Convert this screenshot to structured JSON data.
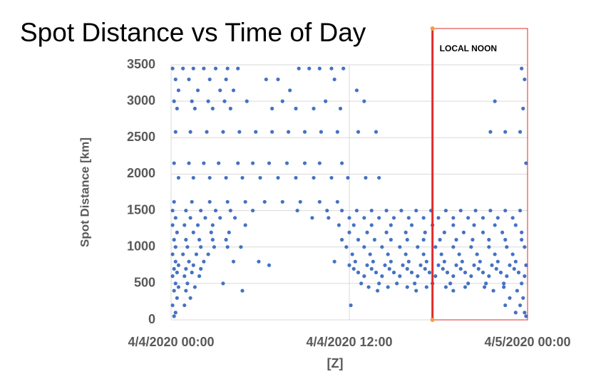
{
  "chart_data": {
    "type": "scatter",
    "title": "Spot Distance vs Time of Day",
    "xlabel": "[Z]",
    "ylabel": "Spot Distance [km]",
    "xlim": [
      0,
      24
    ],
    "xticks": [
      {
        "value": 0,
        "label": "4/4/2020 00:00"
      },
      {
        "value": 12,
        "label": "4/4/2020 12:00"
      },
      {
        "value": 24,
        "label": "4/5/2020 00:00"
      }
    ],
    "ylim": [
      0,
      3500
    ],
    "yticks": [
      0,
      500,
      1000,
      1500,
      2000,
      2500,
      3000,
      3500
    ],
    "grid": true,
    "color": "#4472c4",
    "annotation": {
      "text": "LOCAL NOON",
      "x": 17.6,
      "color": "#e02b2b"
    },
    "x": [
      0.1,
      0.8,
      1.5,
      2.2,
      3.0,
      3.8,
      4.5,
      8.6,
      9.3,
      10.0,
      10.8,
      11.6,
      23.6,
      0.3,
      1.2,
      2.6,
      3.7,
      6.4,
      7.2,
      11.0,
      23.8,
      0.5,
      1.8,
      3.3,
      4.2,
      8.0,
      12.5,
      0.2,
      1.4,
      2.5,
      3.6,
      5.1,
      7.5,
      10.4,
      13.0,
      21.8,
      0.4,
      1.6,
      2.8,
      4.0,
      6.8,
      8.4,
      9.6,
      11.4,
      23.7,
      0.3,
      1.3,
      2.4,
      3.5,
      4.6,
      5.7,
      6.8,
      7.9,
      9.0,
      10.1,
      11.2,
      12.6,
      13.8,
      21.5,
      22.5,
      23.5,
      0.2,
      1.2,
      2.2,
      3.2,
      4.5,
      5.5,
      6.6,
      7.8,
      9.0,
      10.0,
      11.5,
      23.9,
      0.5,
      1.5,
      2.6,
      3.7,
      4.8,
      6.0,
      7.2,
      8.4,
      9.6,
      10.8,
      11.9,
      13.1,
      14.0,
      0.2,
      1.4,
      2.6,
      3.8,
      5.0,
      6.3,
      7.5,
      8.7,
      10.0,
      11.2,
      0.1,
      1.0,
      2.0,
      3.0,
      4.0,
      5.5,
      8.5,
      10.5,
      11.5,
      12.5,
      13.5,
      14.5,
      15.5,
      16.5,
      17.5,
      18.5,
      19.5,
      20.5,
      21.5,
      22.5,
      23.5,
      0.3,
      1.3,
      2.3,
      3.3,
      4.3,
      9.5,
      10.6,
      12.0,
      13.0,
      14.0,
      15.0,
      16.0,
      17.0,
      18.0,
      19.0,
      20.0,
      21.0,
      22.0,
      23.0,
      0.1,
      0.9,
      1.8,
      2.8,
      5.0,
      11.3,
      12.3,
      13.5,
      14.8,
      16.2,
      17.6,
      19.0,
      20.4,
      21.8,
      23.2,
      0.4,
      1.5,
      2.7,
      3.9,
      12.0,
      13.2,
      14.5,
      15.8,
      17.1,
      18.4,
      19.7,
      21.0,
      22.3,
      23.6,
      0.2,
      1.0,
      1.9,
      2.8,
      3.7,
      11.5,
      12.6,
      13.7,
      14.8,
      15.9,
      17.0,
      18.1,
      19.2,
      20.3,
      21.4,
      22.5,
      23.6,
      0.3,
      1.1,
      2.0,
      2.9,
      3.8,
      4.7,
      11.8,
      13.0,
      14.2,
      15.4,
      16.6,
      17.8,
      19.0,
      20.2,
      21.4,
      22.6,
      23.8,
      0.1,
      0.8,
      1.7,
      2.5,
      12.2,
      13.4,
      14.6,
      15.8,
      17.0,
      18.2,
      19.4,
      20.6,
      21.8,
      23.0,
      0.3,
      1.2,
      2.2,
      4.2,
      5.9,
      11.0,
      12.4,
      13.6,
      14.8,
      16.0,
      17.2,
      18.4,
      19.6,
      20.8,
      22.0,
      23.2,
      0.5,
      1.5,
      6.6,
      12.0,
      13.2,
      14.4,
      15.6,
      16.8,
      18.0,
      19.2,
      20.4,
      21.6,
      22.8,
      23.9,
      0.2,
      1.0,
      2.0,
      12.3,
      13.5,
      14.7,
      15.9,
      17.1,
      18.3,
      19.5,
      20.7,
      21.9,
      23.1,
      0.4,
      1.4,
      12.6,
      13.8,
      15.0,
      16.2,
      17.4,
      18.6,
      19.8,
      21.0,
      22.2,
      23.4,
      0.1,
      0.9,
      1.9,
      13.0,
      14.2,
      15.4,
      16.6,
      17.8,
      19.0,
      20.2,
      21.4,
      22.6,
      23.8,
      0.3,
      1.1,
      3.5,
      12.8,
      14.0,
      15.2,
      16.4,
      17.6,
      18.8,
      20.0,
      21.2,
      22.4,
      23.6,
      0.5,
      1.6,
      13.3,
      14.6,
      15.9,
      17.2,
      18.5,
      19.8,
      21.1,
      22.4,
      0.2,
      1.0,
      4.8,
      13.9,
      16.5,
      19.0,
      21.7,
      23.3,
      0.4,
      1.3,
      22.8,
      23.7,
      0.1,
      0.9,
      12.1,
      22.5,
      23.5,
      0.3,
      23.2,
      23.8,
      0.2,
      23.9
    ],
    "values": [
      3450,
      3450,
      3450,
      3450,
      3450,
      3450,
      3450,
      3450,
      3450,
      3450,
      3450,
      3450,
      3450,
      3300,
      3300,
      3300,
      3300,
      3300,
      3300,
      3300,
      3300,
      3150,
      3150,
      3150,
      3150,
      3150,
      3150,
      3000,
      3000,
      3000,
      3000,
      3000,
      3000,
      3000,
      3000,
      3000,
      2900,
      2900,
      2900,
      2900,
      2900,
      2900,
      2900,
      2900,
      2900,
      2580,
      2580,
      2580,
      2580,
      2580,
      2580,
      2580,
      2580,
      2580,
      2580,
      2580,
      2580,
      2580,
      2580,
      2580,
      2580,
      2150,
      2150,
      2150,
      2150,
      2150,
      2150,
      2150,
      2150,
      2150,
      2150,
      2150,
      2150,
      1950,
      1950,
      1950,
      1950,
      1950,
      1950,
      1950,
      1950,
      1950,
      1950,
      1950,
      1950,
      1950,
      1620,
      1620,
      1620,
      1620,
      1620,
      1620,
      1620,
      1620,
      1620,
      1620,
      1500,
      1500,
      1500,
      1500,
      1500,
      1500,
      1500,
      1500,
      1500,
      1500,
      1500,
      1500,
      1500,
      1500,
      1500,
      1500,
      1500,
      1500,
      1500,
      1500,
      1500,
      1400,
      1400,
      1400,
      1400,
      1400,
      1400,
      1400,
      1400,
      1400,
      1400,
      1400,
      1400,
      1400,
      1400,
      1400,
      1400,
      1400,
      1400,
      1400,
      1300,
      1300,
      1300,
      1300,
      1300,
      1300,
      1300,
      1300,
      1300,
      1300,
      1300,
      1300,
      1300,
      1300,
      1300,
      1200,
      1200,
      1200,
      1200,
      1200,
      1200,
      1200,
      1200,
      1200,
      1200,
      1200,
      1200,
      1200,
      1200,
      1100,
      1100,
      1100,
      1100,
      1100,
      1100,
      1100,
      1100,
      1100,
      1100,
      1100,
      1100,
      1100,
      1100,
      1100,
      1100,
      1100,
      1000,
      1000,
      1000,
      1000,
      1000,
      1000,
      1000,
      1000,
      1000,
      1000,
      1000,
      1000,
      1000,
      1000,
      1000,
      1000,
      1000,
      900,
      900,
      900,
      900,
      900,
      900,
      900,
      900,
      900,
      900,
      900,
      900,
      900,
      900,
      800,
      800,
      800,
      800,
      800,
      800,
      800,
      800,
      800,
      800,
      800,
      800,
      800,
      800,
      800,
      800,
      750,
      750,
      750,
      750,
      750,
      750,
      750,
      750,
      750,
      750,
      750,
      750,
      750,
      750,
      700,
      700,
      700,
      700,
      700,
      700,
      700,
      700,
      700,
      700,
      700,
      700,
      700,
      650,
      650,
      650,
      650,
      650,
      650,
      650,
      650,
      650,
      650,
      650,
      650,
      600,
      600,
      600,
      600,
      600,
      600,
      600,
      600,
      600,
      600,
      600,
      600,
      600,
      500,
      500,
      500,
      500,
      500,
      500,
      500,
      500,
      500,
      500,
      500,
      500,
      500,
      450,
      450,
      450,
      450,
      450,
      450,
      450,
      450,
      450,
      450,
      400,
      400,
      400,
      400,
      400,
      400,
      400,
      400,
      300,
      300,
      300,
      300,
      200,
      200,
      200,
      200,
      200,
      100,
      100,
      100,
      50,
      50
    ]
  }
}
